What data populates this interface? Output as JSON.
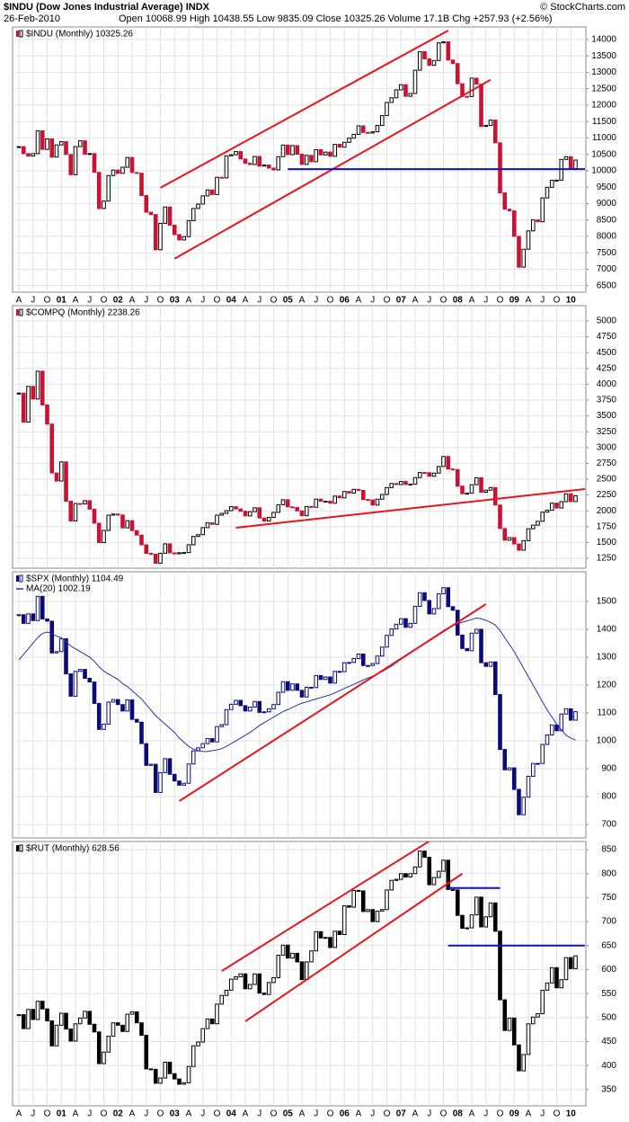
{
  "header": {
    "title": "$INDU (Dow Jones Industrial Average) INDX",
    "date": "26-Feb-2010",
    "quote": "Open 10068.99 High 10438.55 Low 9835.09 Close 10325.26 Volume 17.1B Chg +257.93 (+2.56%)",
    "credit": "© StockCharts.com"
  },
  "chart_data": [
    {
      "type": "candlestick",
      "up_color": "#000000",
      "down_color": "#cc1133",
      "categories": [
        "A",
        null,
        null,
        "J",
        null,
        null,
        "O",
        null,
        null,
        "01",
        null,
        null,
        "A",
        null,
        null,
        "J",
        null,
        null,
        "O",
        null,
        null,
        "02",
        null,
        null,
        "A",
        null,
        null,
        "J",
        null,
        null,
        "O",
        null,
        null,
        "03",
        null,
        null,
        "A",
        null,
        null,
        "J",
        null,
        null,
        "O",
        null,
        null,
        "04",
        null,
        null,
        "A",
        null,
        null,
        "J",
        null,
        null,
        "O",
        null,
        null,
        "05",
        null,
        null,
        "A",
        null,
        null,
        "J",
        null,
        null,
        "O",
        null,
        null,
        "06",
        null,
        null,
        "A",
        null,
        null,
        "J",
        null,
        null,
        "O",
        null,
        null,
        "07",
        null,
        null,
        "A",
        null,
        null,
        "J",
        null,
        null,
        "O",
        null,
        null,
        "08",
        null,
        null,
        "A",
        null,
        null,
        "J",
        null,
        null,
        "O",
        null,
        null,
        "09",
        null,
        null,
        "A",
        null,
        null,
        "J",
        null,
        null,
        "O",
        null,
        null,
        "10",
        null
      ],
      "series": [
        {
          "name": "$INDU (Monthly) 10325.26",
          "values": [
            10734,
            10522,
            10448,
            10522,
            11215,
            10651,
            10971,
            10415,
            10787,
            10887,
            10495,
            9879,
            10735,
            10912,
            10502,
            10523,
            9950,
            8848,
            9075,
            9852,
            10021,
            9920,
            10106,
            10404,
            9946,
            9925,
            9243,
            8737,
            8664,
            7592,
            8397,
            8896,
            8342,
            8054,
            7891,
            7992,
            8480,
            8850,
            8985,
            9234,
            9416,
            9275,
            9801,
            9782,
            10454,
            10488,
            10584,
            10358,
            10226,
            10188,
            10435,
            10140,
            10174,
            10080,
            10027,
            10428,
            10783,
            10490,
            10766,
            10504,
            10193,
            10467,
            10275,
            10641,
            10482,
            10569,
            10440,
            10806,
            10718,
            10865,
            10993,
            11109,
            11367,
            11168,
            11150,
            11186,
            11381,
            11679,
            12081,
            12222,
            12463,
            12622,
            12269,
            12354,
            13063,
            13628,
            13409,
            13212,
            13358,
            13896,
            13930,
            13372,
            13265,
            12650,
            12266,
            12263,
            12820,
            12638,
            11350,
            11378,
            11544,
            10851,
            9325,
            8829,
            8776,
            8001,
            7063,
            7609,
            8168,
            8500,
            8447,
            9172,
            9496,
            9712,
            9713,
            10345,
            10428,
            10067,
            10325.26
          ]
        }
      ],
      "ylim": [
        6300,
        14380
      ],
      "yticks": [
        6500,
        7000,
        7500,
        8000,
        8500,
        9000,
        9500,
        10000,
        10500,
        11000,
        11500,
        12000,
        12500,
        13000,
        13500,
        14000
      ],
      "grid": true,
      "trendlines": [
        {
          "start": [
            "2002-10",
            9480
          ],
          "end": [
            "2007-11",
            14270
          ],
          "color": "#e8141c"
        },
        {
          "start": [
            "2003-01",
            7320
          ],
          "end": [
            "2008-08",
            12770
          ],
          "color": "#e8141c"
        },
        {
          "start": [
            "2005-01",
            10050
          ],
          "end": [
            "2010-04",
            10050
          ],
          "color": "#1010c8"
        }
      ]
    },
    {
      "type": "candlestick",
      "up_color": "#000000",
      "down_color": "#cc1133",
      "series": [
        {
          "name": "$COMPQ (Monthly) 2238.26",
          "values": [
            3860,
            3401,
            3966,
            3767,
            4206,
            3673,
            3370,
            2598,
            2471,
            2773,
            2152,
            1840,
            2116,
            2110,
            2161,
            2027,
            1805,
            1499,
            1690,
            1931,
            1950,
            1934,
            1731,
            1845,
            1688,
            1616,
            1463,
            1328,
            1315,
            1172,
            1330,
            1479,
            1336,
            1321,
            1338,
            1341,
            1464,
            1596,
            1623,
            1735,
            1810,
            1787,
            1932,
            1960,
            2003,
            2066,
            2030,
            1994,
            1920,
            1987,
            2048,
            1887,
            1838,
            1897,
            1975,
            2097,
            2175,
            2062,
            2052,
            1999,
            1922,
            2068,
            2057,
            2185,
            2152,
            2152,
            2120,
            2233,
            2205,
            2306,
            2281,
            2340,
            2323,
            2179,
            2172,
            2091,
            2184,
            2258,
            2367,
            2432,
            2415,
            2464,
            2416,
            2422,
            2525,
            2605,
            2603,
            2546,
            2596,
            2701,
            2859,
            2661,
            2652,
            2390,
            2271,
            2279,
            2413,
            2523,
            2293,
            2326,
            2368,
            2092,
            1721,
            1536,
            1577,
            1476,
            1378,
            1529,
            1717,
            1774,
            1835,
            1979,
            2009,
            2122,
            2045,
            2145,
            2269,
            2147,
            2238.26
          ]
        }
      ],
      "ylim": [
        1094,
        5241
      ],
      "yticks": [
        1250,
        1500,
        1750,
        2000,
        2250,
        2500,
        2750,
        3000,
        3250,
        3500,
        3750,
        4000,
        4250,
        4500,
        4750,
        5000
      ],
      "grid": true,
      "trendlines": [
        {
          "start": [
            "2004-02",
            1733
          ],
          "end": [
            "2010-04",
            2344
          ],
          "color": "#e8141c"
        }
      ]
    },
    {
      "type": "candlestick",
      "up_color": "#0a0a78",
      "down_color": "#0a0a78",
      "series": [
        {
          "name": "$SPX (Monthly) 1104.49",
          "values": [
            1452,
            1421,
            1455,
            1431,
            1518,
            1437,
            1429,
            1315,
            1320,
            1366,
            1240,
            1160,
            1249,
            1256,
            1224,
            1211,
            1134,
            1041,
            1060,
            1139,
            1148,
            1130,
            1107,
            1147,
            1077,
            1067,
            990,
            912,
            916,
            815,
            886,
            936,
            880,
            856,
            841,
            848,
            917,
            964,
            975,
            990,
            1008,
            996,
            1051,
            1058,
            1112,
            1131,
            1145,
            1126,
            1107,
            1121,
            1141,
            1102,
            1104,
            1115,
            1130,
            1174,
            1212,
            1181,
            1204,
            1181,
            1157,
            1192,
            1191,
            1234,
            1220,
            1229,
            1207,
            1249,
            1248,
            1280,
            1281,
            1295,
            1311,
            1270,
            1270,
            1277,
            1304,
            1336,
            1378,
            1401,
            1418,
            1438,
            1407,
            1421,
            1482,
            1531,
            1503,
            1455,
            1474,
            1527,
            1549,
            1481,
            1468,
            1379,
            1331,
            1323,
            1386,
            1400,
            1280,
            1267,
            1283,
            1166,
            969,
            896,
            903,
            826,
            735,
            798,
            873,
            919,
            919,
            987,
            1021,
            1057,
            1036,
            1096,
            1115,
            1074,
            1104.49
          ]
        },
        {
          "name": "MA(20) 1002.19",
          "type": "line",
          "color": "#2233aa",
          "values": [
            1290,
            1310,
            1330,
            1350,
            1370,
            1385,
            1390,
            1385,
            1375,
            1370,
            1355,
            1340,
            1330,
            1320,
            1310,
            1300,
            1285,
            1265,
            1250,
            1240,
            1230,
            1220,
            1205,
            1195,
            1180,
            1165,
            1150,
            1130,
            1110,
            1090,
            1075,
            1060,
            1045,
            1030,
            1010,
            995,
            980,
            970,
            965,
            962,
            962,
            965,
            968,
            972,
            980,
            990,
            1000,
            1010,
            1020,
            1030,
            1042,
            1055,
            1065,
            1075,
            1085,
            1095,
            1105,
            1112,
            1120,
            1128,
            1135,
            1140,
            1145,
            1150,
            1155,
            1160,
            1165,
            1172,
            1180,
            1188,
            1195,
            1203,
            1210,
            1218,
            1225,
            1232,
            1240,
            1248,
            1258,
            1268,
            1280,
            1292,
            1303,
            1315,
            1326,
            1338,
            1350,
            1362,
            1372,
            1384,
            1395,
            1405,
            1413,
            1420,
            1425,
            1430,
            1435,
            1440,
            1438,
            1432,
            1425,
            1415,
            1395,
            1370,
            1345,
            1320,
            1290,
            1260,
            1230,
            1200,
            1170,
            1140,
            1110,
            1085,
            1060,
            1040,
            1020,
            1010,
            1002.19
          ]
        }
      ],
      "ylim": [
        652,
        1606
      ],
      "yticks": [
        700,
        800,
        900,
        1000,
        1100,
        1200,
        1300,
        1400,
        1500
      ],
      "grid": true,
      "trendlines": [
        {
          "start": [
            "2003-02",
            784
          ],
          "end": [
            "2008-07",
            1490
          ],
          "color": "#e8141c"
        }
      ]
    },
    {
      "type": "candlestick",
      "up_color": "#000000",
      "down_color": "#000000",
      "categories": [
        "A",
        null,
        null,
        "J",
        null,
        null,
        "O",
        null,
        null,
        "01",
        null,
        null,
        "A",
        null,
        null,
        "J",
        null,
        null,
        "O",
        null,
        null,
        "02",
        null,
        null,
        "A",
        null,
        null,
        "J",
        null,
        null,
        "O",
        null,
        null,
        "03",
        null,
        null,
        "A",
        null,
        null,
        "J",
        null,
        null,
        "O",
        null,
        null,
        "04",
        null,
        null,
        "A",
        null,
        null,
        "J",
        null,
        null,
        "O",
        null,
        null,
        "05",
        null,
        null,
        "A",
        null,
        null,
        "J",
        null,
        null,
        "O",
        null,
        null,
        "06",
        null,
        null,
        "A",
        null,
        null,
        "J",
        null,
        null,
        "O",
        null,
        null,
        "07",
        null,
        null,
        "A",
        null,
        null,
        "J",
        null,
        null,
        "O",
        null,
        null,
        "08",
        null,
        null,
        "A",
        null,
        null,
        "J",
        null,
        null,
        "O",
        null,
        null,
        "09",
        null,
        null,
        "A",
        null,
        null,
        "J",
        null,
        null,
        "O",
        null,
        null,
        "10",
        null
      ],
      "series": [
        {
          "name": "$RUT (Monthly) 628.56",
          "values": [
            506,
            477,
            517,
            496,
            534,
            518,
            493,
            441,
            484,
            509,
            476,
            451,
            487,
            499,
            513,
            486,
            470,
            404,
            428,
            461,
            489,
            484,
            471,
            507,
            512,
            489,
            463,
            393,
            392,
            363,
            374,
            407,
            383,
            372,
            361,
            364,
            398,
            441,
            449,
            477,
            497,
            487,
            528,
            546,
            557,
            580,
            585,
            591,
            560,
            569,
            591,
            551,
            548,
            573,
            583,
            630,
            651,
            624,
            634,
            616,
            579,
            616,
            639,
            679,
            666,
            667,
            646,
            680,
            673,
            733,
            730,
            765,
            764,
            721,
            725,
            700,
            722,
            725,
            766,
            786,
            788,
            800,
            793,
            800,
            814,
            847,
            834,
            777,
            792,
            805,
            828,
            767,
            766,
            713,
            686,
            687,
            714,
            751,
            689,
            710,
            739,
            680,
            537,
            473,
            499,
            443,
            389,
            423,
            487,
            501,
            508,
            557,
            572,
            604,
            562,
            579,
            625,
            602,
            628.56
          ]
        }
      ],
      "ylim": [
        316,
        867
      ],
      "yticks": [
        350,
        400,
        450,
        500,
        550,
        600,
        650,
        700,
        750,
        800,
        850
      ],
      "grid": true,
      "trendlines": [
        {
          "start": [
            "2003-11",
            597
          ],
          "end": [
            "2007-09",
            880
          ],
          "color": "#e8141c"
        },
        {
          "start": [
            "2004-04",
            492
          ],
          "end": [
            "2008-02",
            800
          ],
          "color": "#e8141c"
        },
        {
          "start": [
            "2007-11",
            770
          ],
          "end": [
            "2008-10",
            770
          ],
          "color": "#1010c8"
        },
        {
          "start": [
            "2007-11",
            650
          ],
          "end": [
            "2010-04",
            650
          ],
          "color": "#1010c8"
        }
      ]
    }
  ]
}
